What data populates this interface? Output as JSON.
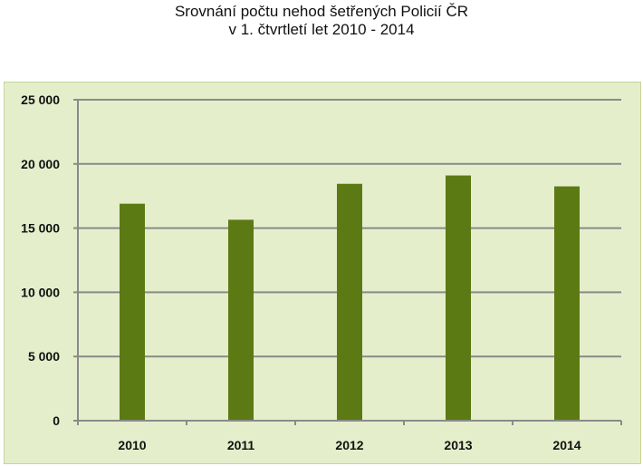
{
  "chart_data": {
    "type": "bar",
    "title": "Srovnání počtu nehod šetřených Policií ČR",
    "subtitle": "v 1. čtvrtletí let 2010 - 2014",
    "xlabel": "",
    "ylabel": "",
    "categories": [
      "2010",
      "2011",
      "2012",
      "2013",
      "2014"
    ],
    "values": [
      16900,
      15650,
      18450,
      19100,
      18250
    ],
    "ylim": [
      0,
      25000
    ],
    "yticks": [
      0,
      5000,
      10000,
      15000,
      20000,
      25000
    ],
    "ytick_labels": [
      "0",
      "5 000",
      "10 000",
      "15 000",
      "20 000",
      "25 000"
    ],
    "grid": true,
    "legend": "none",
    "colors": {
      "bar": "#5b7a14",
      "plot_background": "#e5eecb",
      "gridline": "#8a8a8a"
    }
  }
}
